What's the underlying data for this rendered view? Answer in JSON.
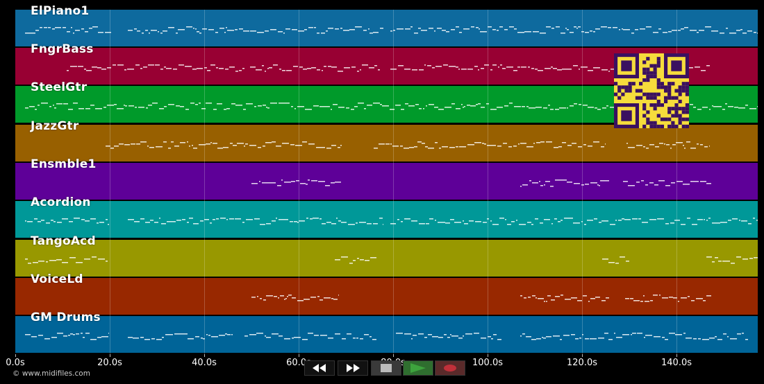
{
  "tracks": [
    {
      "name": "ElPiano1",
      "color": "#0e6a9e"
    },
    {
      "name": "FngrBass",
      "color": "#980033"
    },
    {
      "name": "SteelGtr",
      "color": "#009a2a"
    },
    {
      "name": "JazzGtr",
      "color": "#986000"
    },
    {
      "name": "Ensmble1",
      "color": "#5e0098"
    },
    {
      "name": "Acordion",
      "color": "#009898"
    },
    {
      "name": "TangoAcd",
      "color": "#989800"
    },
    {
      "name": "VoiceLd",
      "color": "#982800"
    },
    {
      "name": "GM Drums",
      "color": "#006498"
    }
  ],
  "timeline": {
    "ticks": [
      "0.0s",
      "20.0s",
      "40.0s",
      "60.0s",
      "80.0s",
      "100.0s",
      "120.0s",
      "140.0s"
    ]
  },
  "copyright": "© www.midifiles.com",
  "transport": {
    "rewind_icon": "rewind-icon",
    "forward_icon": "fast-forward-icon",
    "stop_icon": "stop-icon",
    "play_icon": "play-icon",
    "record_icon": "record-icon",
    "play_color": "#3da33d",
    "record_color": "#c0303a"
  }
}
